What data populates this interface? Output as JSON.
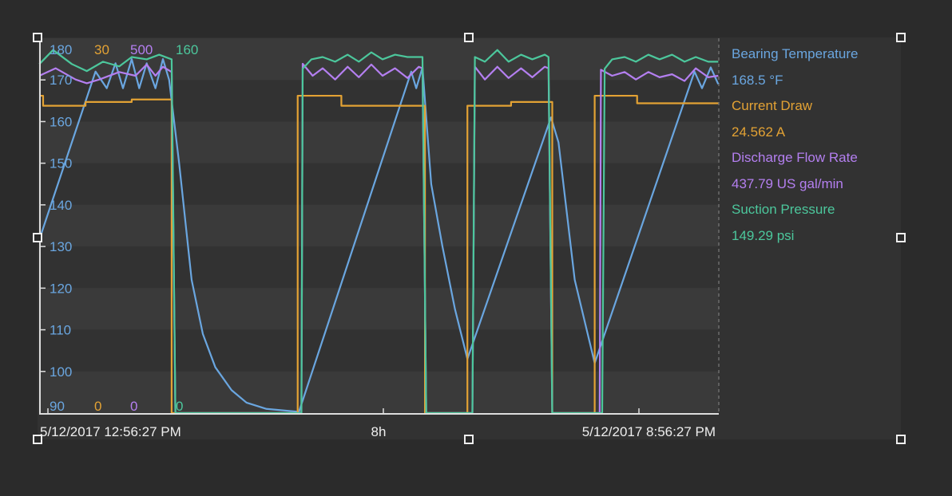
{
  "chart_data": {
    "type": "line",
    "x_axis": {
      "tick_labels": [
        "5/12/2017 12:56:27 PM",
        "8h",
        "5/12/2017 8:56:27 PM"
      ],
      "range": [
        "12:56",
        "22:00"
      ]
    },
    "y_axis": {
      "tick_labels": [
        "170",
        "160",
        "150",
        "140",
        "130",
        "120",
        "110",
        "100"
      ],
      "range": [
        90,
        180
      ]
    },
    "grid": "horizontal bands",
    "legend_position": "right",
    "series": [
      {
        "name": "Bearing Temperature",
        "current": "168.5 °F",
        "color": "#6aa6e0",
        "scale_max": "180",
        "scale_min": "90",
        "range": [
          90,
          180
        ],
        "step": false,
        "points": [
          [
            "12:56",
            131.7
          ],
          [
            "13:41",
            172
          ],
          [
            "13:50",
            168
          ],
          [
            "13:57",
            174
          ],
          [
            "14:03",
            168
          ],
          [
            "14:10",
            175
          ],
          [
            "14:16",
            168
          ],
          [
            "14:22",
            174
          ],
          [
            "14:29",
            168
          ],
          [
            "14:35",
            175
          ],
          [
            "14:40",
            170
          ],
          [
            "14:48",
            150
          ],
          [
            "14:58",
            122
          ],
          [
            "15:07",
            109
          ],
          [
            "15:17",
            101
          ],
          [
            "15:30",
            95.5
          ],
          [
            "15:42",
            92.5
          ],
          [
            "15:58",
            91
          ],
          [
            "16:24",
            90.3
          ],
          [
            "17:54",
            172
          ],
          [
            "17:58",
            168
          ],
          [
            "18:03",
            173
          ],
          [
            "18:10",
            145
          ],
          [
            "18:19",
            130
          ],
          [
            "18:29",
            115
          ],
          [
            "18:39",
            103
          ],
          [
            "19:46",
            161
          ],
          [
            "19:52",
            155
          ],
          [
            "20:05",
            122
          ],
          [
            "20:21",
            102
          ],
          [
            "21:41",
            172
          ],
          [
            "21:47",
            168
          ],
          [
            "21:54",
            173
          ],
          [
            "22:00",
            169
          ]
        ]
      },
      {
        "name": "Current Draw",
        "current": "24.562 A",
        "color": "#e3a234",
        "scale_max": "30",
        "scale_min": "0",
        "range": [
          0,
          30
        ],
        "step": true,
        "points": [
          [
            "12:56",
            25.4
          ],
          [
            "12:59",
            24.6
          ],
          [
            "13:33",
            24.9
          ],
          [
            "14:10",
            25.1
          ],
          [
            "14:42",
            0
          ],
          [
            "16:23",
            25.4
          ],
          [
            "16:58",
            24.6
          ],
          [
            "18:05",
            0
          ],
          [
            "18:39",
            24.6
          ],
          [
            "19:14",
            24.9
          ],
          [
            "19:47",
            0
          ],
          [
            "20:21",
            25.4
          ],
          [
            "20:55",
            24.8
          ],
          [
            "22:00",
            24.8
          ]
        ]
      },
      {
        "name": "Discharge Flow Rate",
        "current": "437.79 US gal/min",
        "color": "#b47ff0",
        "scale_max": "500",
        "scale_min": "0",
        "range": [
          0,
          500
        ],
        "step": false,
        "points": [
          [
            "12:56",
            450
          ],
          [
            "13:09",
            460
          ],
          [
            "13:25",
            445
          ],
          [
            "13:34",
            440
          ],
          [
            "13:44",
            445
          ],
          [
            "14:00",
            455
          ],
          [
            "14:13",
            450
          ],
          [
            "14:22",
            465
          ],
          [
            "14:29",
            450
          ],
          [
            "14:35",
            462
          ],
          [
            "14:42",
            455
          ],
          [
            "14:45",
            0
          ],
          [
            "16:26",
            0
          ],
          [
            "16:27",
            466
          ],
          [
            "16:35",
            450
          ],
          [
            "16:43",
            460
          ],
          [
            "16:53",
            445
          ],
          [
            "17:03",
            462
          ],
          [
            "17:12",
            448
          ],
          [
            "17:22",
            465
          ],
          [
            "17:31",
            450
          ],
          [
            "17:41",
            460
          ],
          [
            "17:51",
            447
          ],
          [
            "18:00",
            462
          ],
          [
            "18:03",
            460
          ],
          [
            "18:06",
            0
          ],
          [
            "18:43",
            0
          ],
          [
            "18:45",
            462
          ],
          [
            "18:53",
            445
          ],
          [
            "19:03",
            462
          ],
          [
            "19:12",
            447
          ],
          [
            "19:22",
            460
          ],
          [
            "19:31",
            448
          ],
          [
            "19:41",
            462
          ],
          [
            "19:44",
            460
          ],
          [
            "19:47",
            0
          ],
          [
            "20:25",
            0
          ],
          [
            "20:26",
            458
          ],
          [
            "20:35",
            450
          ],
          [
            "20:45",
            455
          ],
          [
            "20:54",
            445
          ],
          [
            "21:04",
            455
          ],
          [
            "21:13",
            448
          ],
          [
            "21:23",
            452
          ],
          [
            "21:33",
            443
          ],
          [
            "21:42",
            460
          ],
          [
            "21:52",
            448
          ],
          [
            "22:00",
            450
          ]
        ]
      },
      {
        "name": "Suction Pressure",
        "current": "149.29 psi",
        "color": "#4cc79c",
        "scale_max": "160",
        "scale_min": "0",
        "range": [
          0,
          160
        ],
        "step": false,
        "points": [
          [
            "12:56",
            149
          ],
          [
            "13:07",
            155
          ],
          [
            "13:22",
            149
          ],
          [
            "13:34",
            146
          ],
          [
            "13:47",
            150
          ],
          [
            "14:00",
            148
          ],
          [
            "14:10",
            152
          ],
          [
            "14:22",
            151
          ],
          [
            "14:32",
            153
          ],
          [
            "14:42",
            151
          ],
          [
            "14:45",
            0
          ],
          [
            "16:26",
            0
          ],
          [
            "16:27",
            147
          ],
          [
            "16:34",
            151
          ],
          [
            "16:43",
            152
          ],
          [
            "16:53",
            150
          ],
          [
            "17:03",
            153
          ],
          [
            "17:12",
            150
          ],
          [
            "17:22",
            154
          ],
          [
            "17:31",
            151
          ],
          [
            "17:41",
            153
          ],
          [
            "17:51",
            152
          ],
          [
            "18:03",
            152
          ],
          [
            "18:06",
            0
          ],
          [
            "18:43",
            0
          ],
          [
            "18:45",
            152
          ],
          [
            "18:53",
            150
          ],
          [
            "19:03",
            155
          ],
          [
            "19:12",
            150
          ],
          [
            "19:22",
            153
          ],
          [
            "19:31",
            151
          ],
          [
            "19:41",
            153
          ],
          [
            "19:44",
            152
          ],
          [
            "19:47",
            0
          ],
          [
            "20:27",
            0
          ],
          [
            "20:29",
            147
          ],
          [
            "20:35",
            151
          ],
          [
            "20:45",
            152
          ],
          [
            "20:54",
            150
          ],
          [
            "21:04",
            153
          ],
          [
            "21:13",
            151
          ],
          [
            "21:23",
            153
          ],
          [
            "21:33",
            150
          ],
          [
            "21:42",
            152
          ],
          [
            "21:52",
            150
          ],
          [
            "22:00",
            150
          ]
        ]
      }
    ]
  }
}
